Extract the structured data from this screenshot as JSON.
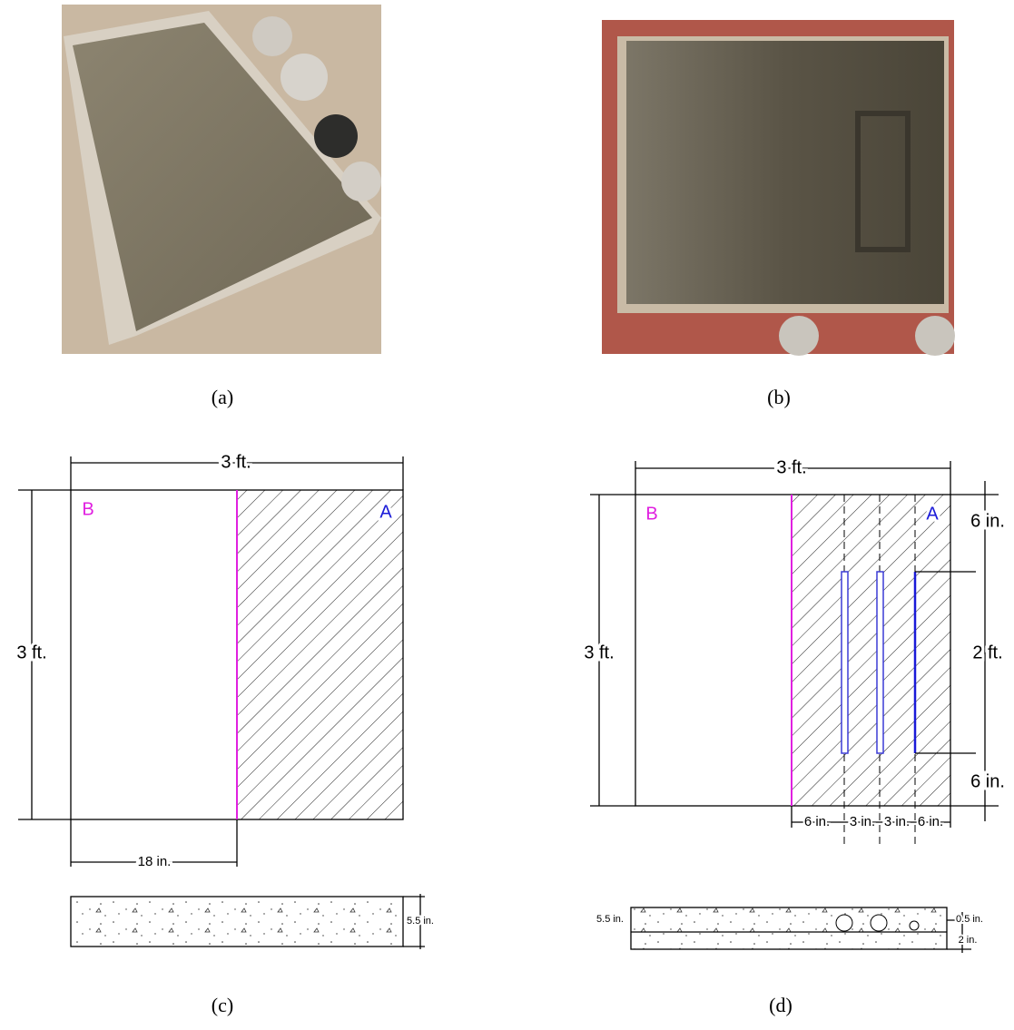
{
  "panels": [
    {
      "caption": "(a)"
    },
    {
      "caption": "(b)"
    },
    {
      "caption": "(c)",
      "width": "3 ft.",
      "height": "3 ft.",
      "left_region": "B",
      "right_region": "A",
      "split": "18 in.",
      "thickness": "5.5 in."
    },
    {
      "caption": "(d)",
      "width": "3 ft.",
      "height": "3 ft.",
      "left_region": "B",
      "right_region": "A",
      "top_offset": "6 in.",
      "slot_length": "2 ft.",
      "bottom_offset": "6 in.",
      "spacings": [
        "6 in.",
        "3 in.",
        "3 in.",
        "6 in."
      ],
      "thickness": "5.5 in.",
      "cover": "0.5 in.",
      "layer": "2 in."
    }
  ]
}
